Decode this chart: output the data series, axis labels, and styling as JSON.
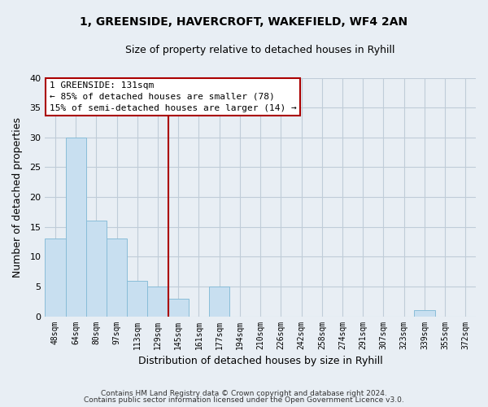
{
  "title": "1, GREENSIDE, HAVERCROFT, WAKEFIELD, WF4 2AN",
  "subtitle": "Size of property relative to detached houses in Ryhill",
  "xlabel": "Distribution of detached houses by size in Ryhill",
  "ylabel": "Number of detached properties",
  "footer_line1": "Contains HM Land Registry data © Crown copyright and database right 2024.",
  "footer_line2": "Contains public sector information licensed under the Open Government Licence v3.0.",
  "bin_labels": [
    "48sqm",
    "64sqm",
    "80sqm",
    "97sqm",
    "113sqm",
    "129sqm",
    "145sqm",
    "161sqm",
    "177sqm",
    "194sqm",
    "210sqm",
    "226sqm",
    "242sqm",
    "258sqm",
    "274sqm",
    "291sqm",
    "307sqm",
    "323sqm",
    "339sqm",
    "355sqm",
    "372sqm"
  ],
  "bar_heights": [
    13,
    30,
    16,
    13,
    6,
    5,
    3,
    0,
    5,
    0,
    0,
    0,
    0,
    0,
    0,
    0,
    0,
    0,
    1,
    0,
    0
  ],
  "bar_color": "#c8dff0",
  "bar_edgecolor": "#89bdd8",
  "vline_x_index": 5,
  "vline_color": "#aa0000",
  "ylim": [
    0,
    40
  ],
  "yticks": [
    0,
    5,
    10,
    15,
    20,
    25,
    30,
    35,
    40
  ],
  "annotation_title": "1 GREENSIDE: 131sqm",
  "annotation_line1": "← 85% of detached houses are smaller (78)",
  "annotation_line2": "15% of semi-detached houses are larger (14) →",
  "annotation_box_color": "#ffffff",
  "annotation_box_edgecolor": "#aa0000",
  "bg_color": "#e8eef4",
  "plot_bg_color": "#e8eef4",
  "grid_color": "#c0ccd8",
  "cell_bg": "#dde6ee"
}
